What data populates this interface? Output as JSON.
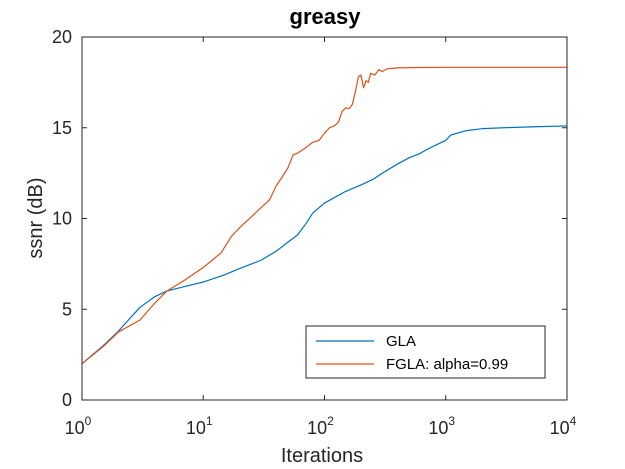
{
  "chart_data": {
    "type": "line",
    "title": "greasy",
    "xlabel": "Iterations",
    "ylabel": "ssnr (dB)",
    "xscale": "log",
    "xlim": [
      1,
      10000
    ],
    "ylim": [
      0,
      20
    ],
    "xticks": [
      {
        "value": 1,
        "base": "10",
        "exp": "0"
      },
      {
        "value": 10,
        "base": "10",
        "exp": "1"
      },
      {
        "value": 100,
        "base": "10",
        "exp": "2"
      },
      {
        "value": 1000,
        "base": "10",
        "exp": "3"
      },
      {
        "value": 10000,
        "base": "10",
        "exp": "4"
      }
    ],
    "yticks": [
      {
        "value": 0,
        "label": "0"
      },
      {
        "value": 5,
        "label": "5"
      },
      {
        "value": 10,
        "label": "10"
      },
      {
        "value": 15,
        "label": "15"
      },
      {
        "value": 20,
        "label": "20"
      }
    ],
    "grid": false,
    "legend_position": "bottom-right",
    "series": [
      {
        "name": "GLA",
        "color": "#0072bd",
        "points": [
          [
            1,
            2.0
          ],
          [
            1.5,
            3.0
          ],
          [
            2,
            3.8
          ],
          [
            3,
            5.1
          ],
          [
            4,
            5.7
          ],
          [
            5,
            6.0
          ],
          [
            7,
            6.25
          ],
          [
            10,
            6.5
          ],
          [
            15,
            6.9
          ],
          [
            20,
            7.25
          ],
          [
            30,
            7.7
          ],
          [
            40,
            8.2
          ],
          [
            50,
            8.7
          ],
          [
            60,
            9.1
          ],
          [
            70,
            9.7
          ],
          [
            80,
            10.3
          ],
          [
            100,
            10.85
          ],
          [
            150,
            11.5
          ],
          [
            200,
            11.85
          ],
          [
            250,
            12.15
          ],
          [
            300,
            12.5
          ],
          [
            400,
            13.0
          ],
          [
            500,
            13.35
          ],
          [
            600,
            13.55
          ],
          [
            700,
            13.8
          ],
          [
            800,
            14.0
          ],
          [
            1000,
            14.3
          ],
          [
            1100,
            14.6
          ],
          [
            1500,
            14.85
          ],
          [
            2000,
            14.95
          ],
          [
            3000,
            15.0
          ],
          [
            5000,
            15.05
          ],
          [
            10000,
            15.1
          ]
        ]
      },
      {
        "name": "FGLA: alpha=0.99",
        "color": "#d95319",
        "points": [
          [
            1,
            2.0
          ],
          [
            1.5,
            2.95
          ],
          [
            2,
            3.75
          ],
          [
            3,
            4.4
          ],
          [
            4,
            5.35
          ],
          [
            5,
            6.0
          ],
          [
            7,
            6.6
          ],
          [
            10,
            7.3
          ],
          [
            14,
            8.1
          ],
          [
            17,
            9.0
          ],
          [
            20,
            9.5
          ],
          [
            25,
            10.1
          ],
          [
            30,
            10.6
          ],
          [
            35,
            11.0
          ],
          [
            40,
            11.8
          ],
          [
            45,
            12.3
          ],
          [
            50,
            12.8
          ],
          [
            55,
            13.5
          ],
          [
            60,
            13.6
          ],
          [
            70,
            13.9
          ],
          [
            80,
            14.2
          ],
          [
            90,
            14.3
          ],
          [
            100,
            14.7
          ],
          [
            110,
            15.0
          ],
          [
            120,
            15.1
          ],
          [
            130,
            15.3
          ],
          [
            140,
            15.9
          ],
          [
            150,
            16.1
          ],
          [
            160,
            16.05
          ],
          [
            170,
            16.3
          ],
          [
            180,
            17.0
          ],
          [
            190,
            17.8
          ],
          [
            200,
            17.9
          ],
          [
            210,
            17.2
          ],
          [
            220,
            17.6
          ],
          [
            230,
            17.5
          ],
          [
            240,
            18.0
          ],
          [
            260,
            17.9
          ],
          [
            280,
            18.2
          ],
          [
            300,
            18.1
          ],
          [
            330,
            18.25
          ],
          [
            400,
            18.3
          ],
          [
            600,
            18.32
          ],
          [
            1000,
            18.33
          ],
          [
            3000,
            18.33
          ],
          [
            10000,
            18.33
          ]
        ]
      }
    ]
  }
}
